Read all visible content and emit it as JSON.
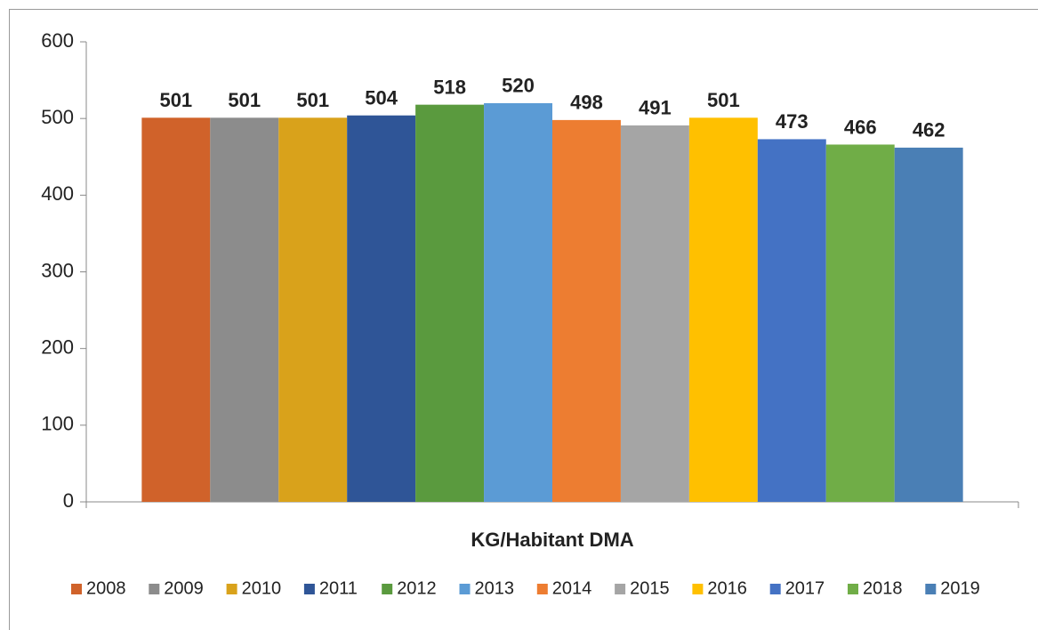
{
  "chart_data": {
    "type": "bar",
    "categories": [
      "KG/Habitant DMA"
    ],
    "series": [
      {
        "name": "2008",
        "color": "#d0622a",
        "values": [
          501
        ]
      },
      {
        "name": "2009",
        "color": "#8c8c8c",
        "values": [
          501
        ]
      },
      {
        "name": "2010",
        "color": "#d9a21b",
        "values": [
          501
        ]
      },
      {
        "name": "2011",
        "color": "#2f5597",
        "values": [
          504
        ]
      },
      {
        "name": "2012",
        "color": "#5a9a3e",
        "values": [
          518
        ]
      },
      {
        "name": "2013",
        "color": "#5b9bd5",
        "values": [
          520
        ]
      },
      {
        "name": "2014",
        "color": "#ed7d31",
        "values": [
          498
        ]
      },
      {
        "name": "2015",
        "color": "#a5a5a5",
        "values": [
          491
        ]
      },
      {
        "name": "2016",
        "color": "#ffc000",
        "values": [
          501
        ]
      },
      {
        "name": "2017",
        "color": "#4472c4",
        "values": [
          473
        ]
      },
      {
        "name": "2018",
        "color": "#70ad47",
        "values": [
          466
        ]
      },
      {
        "name": "2019",
        "color": "#4a7fb5",
        "values": [
          462
        ]
      }
    ],
    "ylim": [
      0,
      600
    ],
    "yticks": [
      0,
      100,
      200,
      300,
      400,
      500,
      600
    ],
    "grid": false,
    "legend": "bottom"
  }
}
